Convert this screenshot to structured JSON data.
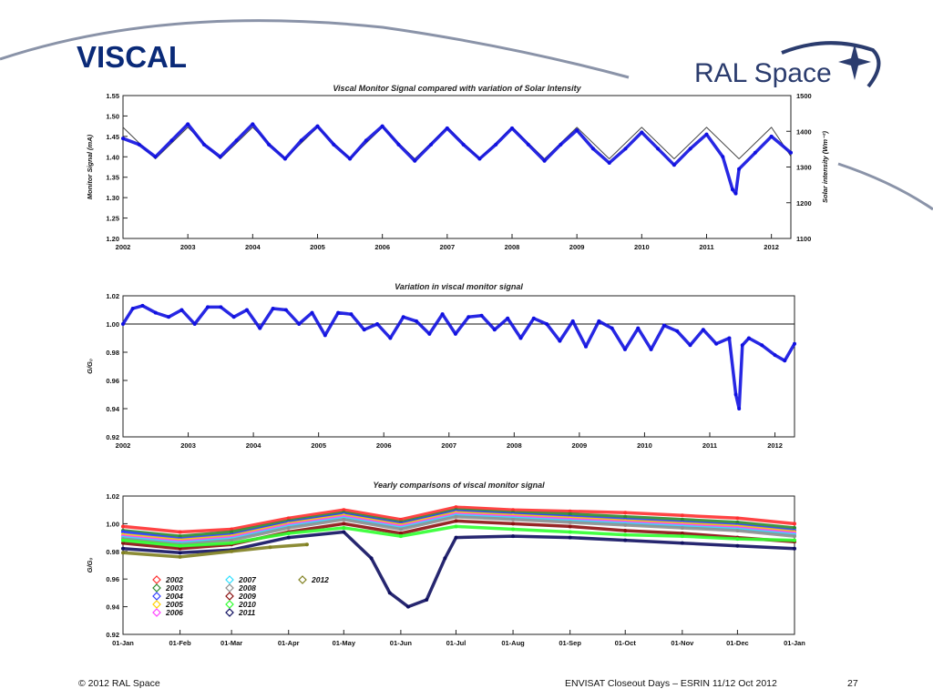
{
  "slide": {
    "title": "VISCAL",
    "logo_text": "RAL Space",
    "footer_left": "© 2012 RAL Space",
    "footer_right": "ENVISAT Closeout Days – ESRIN 11/12 Oct 2012",
    "page_number": "27",
    "colors": {
      "title": "#0a2a78",
      "logo": "#2b3c6e",
      "data": "#1010e0",
      "decor_line": "#8a93a8"
    }
  },
  "chart_data": [
    {
      "type": "scatter",
      "title": "Viscal Monitor Signal compared with variation of Solar Intensity",
      "ylabel": "Monitor Signal (mA)",
      "y2label": "Solar intensity (Wm⁻²)",
      "xlim": [
        2002.0,
        2012.3
      ],
      "ylim": [
        1.2,
        1.55
      ],
      "y2lim": [
        1100,
        1500
      ],
      "xticks": [
        "2002",
        "2003",
        "2004",
        "2005",
        "2006",
        "2007",
        "2008",
        "2009",
        "2010",
        "2011",
        "2012"
      ],
      "yticks": [
        "1.20",
        "1.25",
        "1.30",
        "1.35",
        "1.40",
        "1.45",
        "1.50",
        "1.55"
      ],
      "y2ticks": [
        "1100",
        "1200",
        "1300",
        "1400",
        "1500"
      ],
      "series": [
        {
          "role": "solar_intensity",
          "color": "#333333",
          "x": [
            2002.0,
            2002.5,
            2003.0,
            2003.5,
            2004.0,
            2004.5,
            2005.0,
            2005.5,
            2006.0,
            2006.5,
            2007.0,
            2007.5,
            2008.0,
            2008.5,
            2009.0,
            2009.5,
            2010.0,
            2010.5,
            2011.0,
            2011.5,
            2012.0,
            2012.3
          ],
          "y": [
            1411,
            1323,
            1411,
            1323,
            1411,
            1323,
            1411,
            1323,
            1411,
            1323,
            1411,
            1323,
            1411,
            1323,
            1411,
            1323,
            1411,
            1323,
            1411,
            1323,
            1411,
            1330
          ]
        },
        {
          "role": "monitor_signal",
          "color": "#1010e0",
          "x": [
            2002.0,
            2002.25,
            2002.5,
            2002.75,
            2003.0,
            2003.25,
            2003.5,
            2003.75,
            2004.0,
            2004.25,
            2004.5,
            2004.75,
            2005.0,
            2005.25,
            2005.5,
            2005.75,
            2006.0,
            2006.25,
            2006.5,
            2006.75,
            2007.0,
            2007.25,
            2007.5,
            2007.75,
            2008.0,
            2008.25,
            2008.5,
            2008.75,
            2009.0,
            2009.25,
            2009.5,
            2009.75,
            2010.0,
            2010.25,
            2010.5,
            2010.75,
            2011.0,
            2011.25,
            2011.4,
            2011.45,
            2011.5,
            2011.75,
            2012.0,
            2012.3
          ],
          "y": [
            1.445,
            1.43,
            1.4,
            1.44,
            1.48,
            1.43,
            1.4,
            1.44,
            1.48,
            1.43,
            1.395,
            1.44,
            1.475,
            1.43,
            1.395,
            1.44,
            1.475,
            1.43,
            1.39,
            1.43,
            1.47,
            1.43,
            1.395,
            1.43,
            1.47,
            1.43,
            1.39,
            1.43,
            1.465,
            1.42,
            1.385,
            1.42,
            1.46,
            1.42,
            1.38,
            1.42,
            1.455,
            1.4,
            1.32,
            1.31,
            1.37,
            1.41,
            1.45,
            1.41
          ]
        }
      ]
    },
    {
      "type": "scatter",
      "title": "Variation in viscal monitor signal",
      "ylabel": "G/G₀",
      "xlim": [
        2002.0,
        2012.3
      ],
      "ylim": [
        0.92,
        1.02
      ],
      "xticks": [
        "2002",
        "2003",
        "2004",
        "2005",
        "2006",
        "2007",
        "2008",
        "2009",
        "2010",
        "2011",
        "2012"
      ],
      "yticks": [
        "0.92",
        "0.94",
        "0.96",
        "0.98",
        "1.00",
        "1.02"
      ],
      "reference_line": 1.0,
      "series": [
        {
          "role": "ratio",
          "color": "#1010e0",
          "x": [
            2002.0,
            2002.15,
            2002.3,
            2002.5,
            2002.7,
            2002.9,
            2003.1,
            2003.3,
            2003.5,
            2003.7,
            2003.9,
            2004.1,
            2004.3,
            2004.5,
            2004.7,
            2004.9,
            2005.1,
            2005.3,
            2005.5,
            2005.7,
            2005.9,
            2006.1,
            2006.3,
            2006.5,
            2006.7,
            2006.9,
            2007.1,
            2007.3,
            2007.5,
            2007.7,
            2007.9,
            2008.1,
            2008.3,
            2008.5,
            2008.7,
            2008.9,
            2009.1,
            2009.3,
            2009.5,
            2009.7,
            2009.9,
            2010.1,
            2010.3,
            2010.5,
            2010.7,
            2010.9,
            2011.1,
            2011.3,
            2011.4,
            2011.45,
            2011.5,
            2011.6,
            2011.8,
            2012.0,
            2012.15,
            2012.3
          ],
          "y": [
            1.0,
            1.011,
            1.013,
            1.008,
            1.005,
            1.01,
            1.0,
            1.012,
            1.012,
            1.005,
            1.01,
            0.997,
            1.011,
            1.01,
            1.0,
            1.008,
            0.992,
            1.008,
            1.007,
            0.996,
            1.0,
            0.99,
            1.005,
            1.002,
            0.993,
            1.007,
            0.993,
            1.005,
            1.006,
            0.996,
            1.004,
            0.99,
            1.004,
            1.0,
            0.988,
            1.002,
            0.984,
            1.002,
            0.997,
            0.982,
            0.997,
            0.982,
            0.999,
            0.995,
            0.985,
            0.996,
            0.986,
            0.99,
            0.95,
            0.94,
            0.985,
            0.99,
            0.985,
            0.978,
            0.974,
            0.986
          ]
        }
      ]
    },
    {
      "type": "scatter",
      "title": "Yearly comparisons of viscal monitor signal",
      "ylabel": "G/G₀",
      "xlim": [
        0,
        365
      ],
      "ylim": [
        0.92,
        1.02
      ],
      "xticks": [
        "01-Jan",
        "01-Feb",
        "01-Mar",
        "01-Apr",
        "01-May",
        "01-Jun",
        "01-Jul",
        "01-Aug",
        "01-Sep",
        "01-Oct",
        "01-Nov",
        "01-Dec",
        "01-Jan"
      ],
      "xtick_days": [
        0,
        31,
        59,
        90,
        120,
        151,
        181,
        212,
        243,
        273,
        304,
        334,
        365
      ],
      "yticks": [
        "0.92",
        "0.94",
        "0.96",
        "0.98",
        "1.00",
        "1.02"
      ],
      "legend_markers": "open diamonds",
      "series": [
        {
          "name": "2002",
          "color": "#ff3030",
          "x": [
            0,
            31,
            59,
            90,
            120,
            151,
            181,
            212,
            243,
            273,
            304,
            334,
            365
          ],
          "y": [
            0.998,
            0.994,
            0.996,
            1.004,
            1.01,
            1.003,
            1.012,
            1.01,
            1.009,
            1.008,
            1.006,
            1.004,
            1.0
          ]
        },
        {
          "name": "2003",
          "color": "#2e8b2e",
          "x": [
            0,
            31,
            59,
            90,
            120,
            151,
            181,
            212,
            243,
            273,
            304,
            334,
            365
          ],
          "y": [
            0.995,
            0.991,
            0.994,
            1.002,
            1.008,
            1.001,
            1.01,
            1.008,
            1.007,
            1.005,
            1.003,
            1.001,
            0.997
          ]
        },
        {
          "name": "2004",
          "color": "#3040ff",
          "x": [
            0,
            31,
            59,
            90,
            120,
            151,
            181,
            212,
            243,
            273,
            304,
            334,
            365
          ],
          "y": [
            0.994,
            0.989,
            0.992,
            1.001,
            1.007,
            1.0,
            1.009,
            1.007,
            1.005,
            1.003,
            1.001,
            0.999,
            0.995
          ]
        },
        {
          "name": "2005",
          "color": "#ffd000",
          "x": [
            0,
            31,
            59,
            90,
            120,
            151,
            181,
            212,
            243,
            273,
            304,
            334,
            365
          ],
          "y": [
            0.992,
            0.988,
            0.991,
            1.0,
            1.006,
            0.999,
            1.008,
            1.006,
            1.004,
            1.002,
            1.0,
            0.998,
            0.994
          ]
        },
        {
          "name": "2006",
          "color": "#ff40ff",
          "x": [
            0,
            31,
            59,
            90,
            120,
            151,
            181,
            212,
            243,
            273,
            304,
            334,
            365
          ],
          "y": [
            0.991,
            0.987,
            0.99,
            0.999,
            1.005,
            0.998,
            1.007,
            1.005,
            1.003,
            1.001,
            0.999,
            0.997,
            0.993
          ]
        },
        {
          "name": "2007",
          "color": "#30e0ff",
          "x": [
            0,
            31,
            59,
            90,
            120,
            151,
            181,
            212,
            243,
            273,
            304,
            334,
            365
          ],
          "y": [
            0.99,
            0.986,
            0.989,
            0.998,
            1.004,
            0.997,
            1.006,
            1.004,
            1.002,
            1.0,
            0.998,
            0.996,
            0.992
          ]
        },
        {
          "name": "2008",
          "color": "#909090",
          "x": [
            0,
            31,
            59,
            90,
            120,
            151,
            181,
            212,
            243,
            273,
            304,
            334,
            365
          ],
          "y": [
            0.989,
            0.985,
            0.988,
            0.997,
            1.003,
            0.996,
            1.005,
            1.003,
            1.001,
            0.999,
            0.997,
            0.995,
            0.991
          ]
        },
        {
          "name": "2009",
          "color": "#8b1010",
          "x": [
            0,
            31,
            59,
            90,
            120,
            151,
            181,
            212,
            243,
            273,
            304,
            334,
            365
          ],
          "y": [
            0.986,
            0.982,
            0.985,
            0.994,
            1.0,
            0.993,
            1.002,
            1.0,
            0.998,
            0.995,
            0.993,
            0.99,
            0.987
          ]
        },
        {
          "name": "2010",
          "color": "#30ff30",
          "x": [
            0,
            31,
            59,
            90,
            120,
            151,
            181,
            212,
            243,
            273,
            304,
            334,
            365
          ],
          "y": [
            0.988,
            0.984,
            0.986,
            0.993,
            0.997,
            0.991,
            0.998,
            0.996,
            0.994,
            0.992,
            0.991,
            0.989,
            0.988
          ]
        },
        {
          "name": "2011",
          "color": "#101060",
          "x": [
            0,
            31,
            59,
            90,
            120,
            135,
            145,
            155,
            165,
            175,
            181,
            212,
            243,
            273,
            304,
            334,
            365
          ],
          "y": [
            0.982,
            0.979,
            0.981,
            0.99,
            0.994,
            0.975,
            0.95,
            0.94,
            0.945,
            0.975,
            0.99,
            0.991,
            0.99,
            0.988,
            0.986,
            0.984,
            0.982
          ]
        },
        {
          "name": "2012",
          "color": "#808020",
          "x": [
            0,
            31,
            59,
            80,
            100
          ],
          "y": [
            0.979,
            0.976,
            0.98,
            0.983,
            0.985
          ]
        }
      ]
    }
  ]
}
